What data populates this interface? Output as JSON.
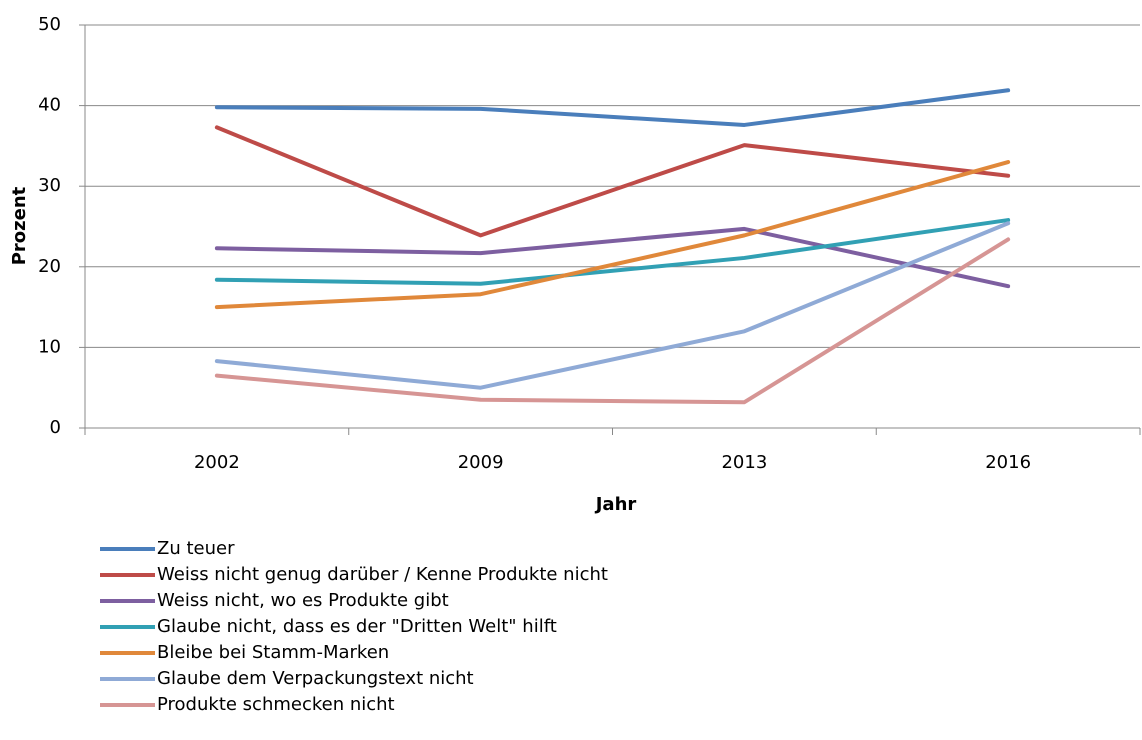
{
  "chart_data": {
    "type": "line",
    "x_label": "Jahr",
    "y_label": "Prozent",
    "categories": [
      "2002",
      "2009",
      "2013",
      "2016"
    ],
    "series": [
      {
        "name": "Zu teuer",
        "color": "#4a7ebb",
        "values": [
          39.8,
          39.6,
          37.6,
          41.9
        ]
      },
      {
        "name": "Weiss nicht genug darüber / Kenne Produkte nicht",
        "color": "#be4b48",
        "values": [
          37.3,
          23.9,
          35.1,
          31.3
        ]
      },
      {
        "name": "Weiss nicht, wo es Produkte gibt",
        "color": "#7d5fa0",
        "values": [
          22.3,
          21.7,
          24.7,
          17.6
        ]
      },
      {
        "name": "Glaube nicht, dass es der \"Dritten Welt\" hilft",
        "color": "#31a0b4",
        "values": [
          18.4,
          17.9,
          21.1,
          25.8
        ]
      },
      {
        "name": "Bleibe bei Stamm-Marken",
        "color": "#e0883a",
        "values": [
          15.0,
          16.6,
          23.9,
          33.0
        ]
      },
      {
        "name": "Glaube dem Verpackungstext nicht",
        "color": "#8faad6",
        "values": [
          8.3,
          5.0,
          12.0,
          25.4
        ]
      },
      {
        "name": "Produkte schmecken nicht",
        "color": "#d69594",
        "values": [
          6.5,
          3.5,
          3.2,
          23.4
        ]
      }
    ],
    "ylim": [
      0,
      50
    ],
    "yticks": [
      0,
      10,
      20,
      30,
      40,
      50
    ],
    "grid": true,
    "legend": "bottom"
  }
}
